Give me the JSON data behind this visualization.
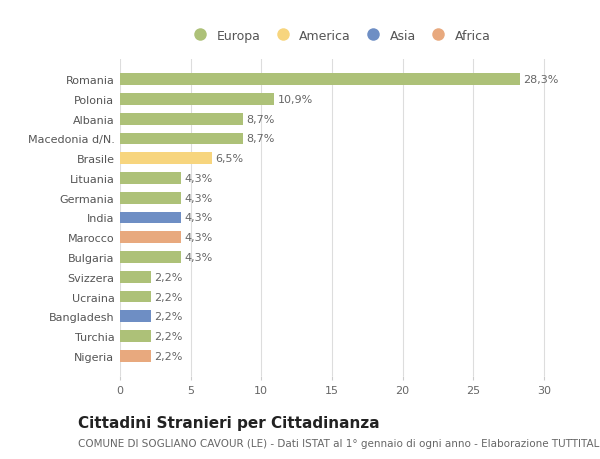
{
  "categories": [
    "Romania",
    "Polonia",
    "Albania",
    "Macedonia d/N.",
    "Brasile",
    "Lituania",
    "Germania",
    "India",
    "Marocco",
    "Bulgaria",
    "Svizzera",
    "Ucraina",
    "Bangladesh",
    "Turchia",
    "Nigeria"
  ],
  "values": [
    28.3,
    10.9,
    8.7,
    8.7,
    6.5,
    4.3,
    4.3,
    4.3,
    4.3,
    4.3,
    2.2,
    2.2,
    2.2,
    2.2,
    2.2
  ],
  "labels": [
    "28,3%",
    "10,9%",
    "8,7%",
    "8,7%",
    "6,5%",
    "4,3%",
    "4,3%",
    "4,3%",
    "4,3%",
    "4,3%",
    "2,2%",
    "2,2%",
    "2,2%",
    "2,2%",
    "2,2%"
  ],
  "continents": [
    "Europa",
    "Europa",
    "Europa",
    "Europa",
    "America",
    "Europa",
    "Europa",
    "Asia",
    "Africa",
    "Europa",
    "Europa",
    "Europa",
    "Asia",
    "Europa",
    "Africa"
  ],
  "continent_colors": {
    "Europa": "#adc178",
    "America": "#f7d57e",
    "Asia": "#6e8ec4",
    "Africa": "#e8a97e"
  },
  "legend_order": [
    "Europa",
    "America",
    "Asia",
    "Africa"
  ],
  "title": "Cittadini Stranieri per Cittadinanza",
  "subtitle": "COMUNE DI SOGLIANO CAVOUR (LE) - Dati ISTAT al 1° gennaio di ogni anno - Elaborazione TUTTITALIA.IT",
  "xlim": [
    0,
    31
  ],
  "xticks": [
    0,
    5,
    10,
    15,
    20,
    25,
    30
  ],
  "background_color": "#ffffff",
  "plot_background": "#ffffff",
  "grid_color": "#dddddd",
  "title_fontsize": 11,
  "subtitle_fontsize": 7.5,
  "label_fontsize": 8,
  "tick_fontsize": 8,
  "bar_height": 0.6
}
